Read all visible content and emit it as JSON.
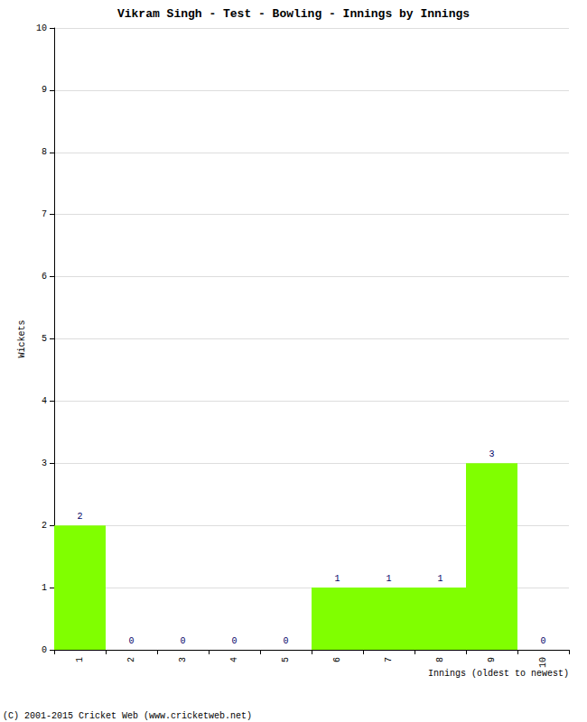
{
  "chart_data": {
    "type": "bar",
    "title": "Vikram Singh - Test - Bowling - Innings by Innings",
    "x_label": "Innings (oldest to newest)",
    "y_label": "Wickets",
    "categories": [
      "1",
      "2",
      "3",
      "4",
      "5",
      "6",
      "7",
      "8",
      "9",
      "10"
    ],
    "values": [
      2,
      0,
      0,
      0,
      0,
      1,
      1,
      1,
      3,
      0
    ],
    "color": "#80ff00",
    "ylim": [
      0,
      10
    ],
    "yticks": [
      0,
      1,
      2,
      3,
      4,
      5,
      6,
      7,
      8,
      9,
      10
    ],
    "grid": true,
    "data_labels": true,
    "annotations": [
      "(C) 2001-2015 Cricket Web (www.cricketweb.net)"
    ]
  }
}
